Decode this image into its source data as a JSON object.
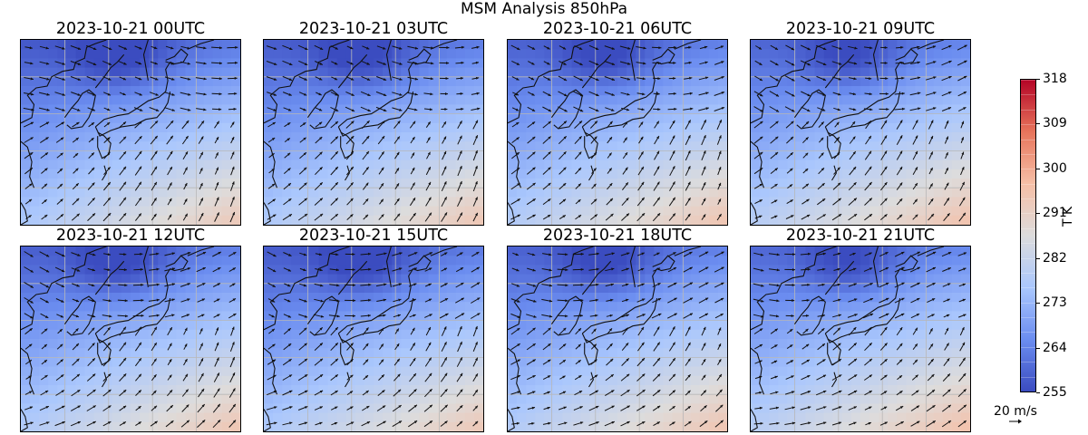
{
  "title": "MSM Analysis 850hPa",
  "panels": [
    {
      "time": "2023-10-21 00UTC",
      "warm_shift": 0.0
    },
    {
      "time": "2023-10-21 03UTC",
      "warm_shift": 0.02
    },
    {
      "time": "2023-10-21 06UTC",
      "warm_shift": 0.04
    },
    {
      "time": "2023-10-21 09UTC",
      "warm_shift": 0.06
    },
    {
      "time": "2023-10-21 12UTC",
      "warm_shift": 0.03
    },
    {
      "time": "2023-10-21 15UTC",
      "warm_shift": 0.01
    },
    {
      "time": "2023-10-21 18UTC",
      "warm_shift": 0.04
    },
    {
      "time": "2023-10-21 21UTC",
      "warm_shift": 0.07
    }
  ],
  "colorbar": {
    "label": "T K",
    "min": 255,
    "max": 318,
    "ticks": [
      "318",
      "309",
      "300",
      "291",
      "282",
      "273",
      "264",
      "255"
    ],
    "tick_values": [
      318,
      309,
      300,
      291,
      282,
      273,
      264,
      255
    ],
    "colors": [
      "#3b4cc0",
      "#6b8df0",
      "#aac7fd",
      "#dddcdc",
      "#f6bfa6",
      "#e7745b",
      "#b40426"
    ]
  },
  "quiver_key": {
    "label": "20 m/s",
    "magnitude": 20
  }
}
